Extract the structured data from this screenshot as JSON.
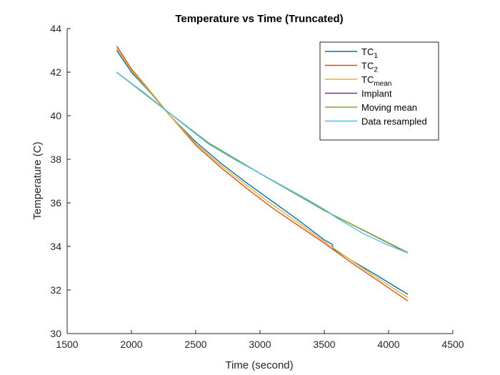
{
  "chart_data": {
    "type": "line",
    "title": "Temperature vs Time (Truncated)",
    "xlabel": "Time (second)",
    "ylabel": "Temperature (C)",
    "xlim": [
      1500,
      4500
    ],
    "ylim": [
      30,
      44
    ],
    "xticks": [
      "1500",
      "2000",
      "2500",
      "3000",
      "3500",
      "4000",
      "4500"
    ],
    "yticks": [
      "30",
      "32",
      "34",
      "36",
      "38",
      "40",
      "42",
      "44"
    ],
    "grid": false,
    "legend_position": "top-right",
    "series": [
      {
        "name": "TC",
        "subscript": "1",
        "color": "#0072BD",
        "x": [
          1885,
          2000,
          2150,
          2300,
          2500,
          2700,
          2900,
          3100,
          3300,
          3500,
          3560,
          3570,
          3700,
          3900,
          4150
        ],
        "y": [
          43.0,
          42.0,
          41.05,
          40.0,
          38.8,
          37.8,
          36.9,
          36.05,
          35.2,
          34.3,
          34.1,
          33.9,
          33.4,
          32.7,
          31.8
        ]
      },
      {
        "name": "TC",
        "subscript": "2",
        "color": "#D95319",
        "x": [
          1885,
          2000,
          2150,
          2300,
          2500,
          2700,
          2900,
          3100,
          3300,
          3500,
          3700,
          3900,
          4150
        ],
        "y": [
          43.2,
          42.15,
          41.1,
          40.0,
          38.65,
          37.6,
          36.65,
          35.75,
          34.95,
          34.15,
          33.3,
          32.5,
          31.5
        ]
      },
      {
        "name": "TC",
        "subscript": "mean",
        "color": "#EDB120",
        "x": [
          1885,
          2000,
          2150,
          2300,
          2500,
          2700,
          2900,
          3100,
          3300,
          3500,
          3700,
          3900,
          4150
        ],
        "y": [
          43.1,
          42.08,
          41.08,
          40.0,
          38.72,
          37.7,
          36.78,
          35.9,
          35.08,
          34.22,
          33.4,
          32.6,
          31.65
        ]
      },
      {
        "name": "Implant",
        "color": "#7E2F8E",
        "x": [
          1885,
          2300,
          2600,
          3000,
          3500,
          4150
        ],
        "y": [
          42.0,
          40.1,
          38.75,
          37.35,
          35.65,
          33.7
        ]
      },
      {
        "name": "Moving mean",
        "color": "#77AC30",
        "x": [
          1885,
          2300,
          2600,
          3000,
          3500,
          4150
        ],
        "y": [
          42.0,
          40.1,
          38.75,
          37.35,
          35.65,
          33.72
        ]
      },
      {
        "name": "Data resampled",
        "color": "#4DBEEE",
        "x": [
          1885,
          2100,
          2300,
          2450,
          2600,
          2800,
          3000,
          3200,
          3400,
          3500,
          3600,
          3800,
          4000,
          4150
        ],
        "y": [
          42.0,
          41.05,
          40.1,
          39.4,
          38.7,
          38.0,
          37.35,
          36.7,
          36.05,
          35.7,
          35.3,
          34.6,
          34.05,
          33.7
        ]
      }
    ]
  }
}
